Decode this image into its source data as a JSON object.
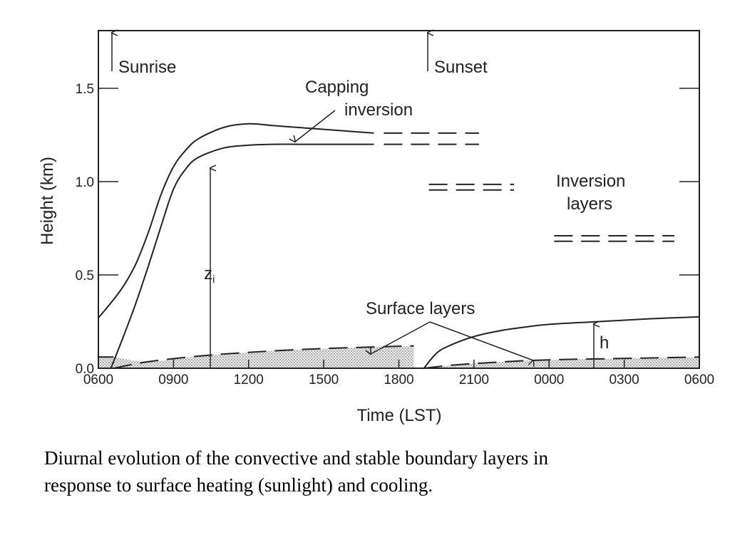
{
  "chart_data": {
    "type": "line",
    "title": "",
    "xlabel": "Time (LST)",
    "ylabel": "Height (km)",
    "x_tick_labels": [
      "0600",
      "0900",
      "1200",
      "1500",
      "1800",
      "2100",
      "0000",
      "0300",
      "0600"
    ],
    "x_tick_hours": [
      0,
      3,
      6,
      9,
      12,
      15,
      18,
      21,
      24
    ],
    "y_ticks": [
      0.0,
      0.5,
      1.0,
      1.5
    ],
    "y_tick_labels": [
      "0.0",
      "0.5",
      "1.0",
      "1.5"
    ],
    "xlim_hours": [
      0,
      24
    ],
    "ylim": [
      0,
      1.8
    ],
    "grid": false,
    "series": [
      {
        "name": "",
        "style": "solid",
        "x_hours": [
          0,
          0.5,
          1,
          1.5,
          2,
          2.5,
          3,
          3.5,
          4,
          5,
          6,
          7,
          8,
          9,
          10,
          11
        ],
        "values": [
          0.27,
          0.35,
          0.44,
          0.56,
          0.73,
          0.93,
          1.08,
          1.17,
          1.23,
          1.29,
          1.31,
          1.3,
          1.29,
          1.28,
          1.27,
          1.26
        ]
      },
      {
        "name": "",
        "style": "solid",
        "x_hours": [
          0.5,
          1,
          1.5,
          2,
          2.5,
          3,
          3.5,
          4,
          5,
          6,
          7,
          8,
          9,
          10,
          11
        ],
        "values": [
          0.0,
          0.17,
          0.35,
          0.55,
          0.76,
          0.96,
          1.07,
          1.13,
          1.18,
          1.195,
          1.2,
          1.2,
          1.2,
          1.2,
          1.2
        ]
      },
      {
        "name": "",
        "style": "dashed",
        "x_hours": [
          11.4,
          15.2
        ],
        "values": [
          1.26,
          1.26
        ]
      },
      {
        "name": "",
        "style": "dashed",
        "x_hours": [
          11.4,
          15.2
        ],
        "values": [
          1.2,
          1.2
        ]
      },
      {
        "name": "",
        "style": "dashed",
        "x_hours": [
          13.2,
          16.6
        ],
        "values": [
          0.985,
          0.985
        ]
      },
      {
        "name": "",
        "style": "dashed",
        "x_hours": [
          13.2,
          16.6
        ],
        "values": [
          0.955,
          0.955
        ]
      },
      {
        "name": "",
        "style": "dashed",
        "x_hours": [
          18.2,
          23.0
        ],
        "values": [
          0.71,
          0.71
        ]
      },
      {
        "name": "",
        "style": "dashed",
        "x_hours": [
          18.2,
          23.0
        ],
        "values": [
          0.68,
          0.68
        ]
      },
      {
        "name": "",
        "style": "dashed",
        "x_hours": [
          0.6,
          2,
          4,
          6,
          8,
          10,
          12.6
        ],
        "values": [
          0.0,
          0.035,
          0.065,
          0.085,
          0.1,
          0.11,
          0.12
        ]
      },
      {
        "name": "",
        "style": "dashed",
        "x_hours": [
          0,
          0.6
        ],
        "values": [
          0.06,
          0.06
        ]
      },
      {
        "name": "",
        "style": "solid",
        "x_hours": [
          13.0,
          13.5,
          14,
          15,
          16,
          17,
          18,
          20,
          22,
          24
        ],
        "values": [
          0.0,
          0.08,
          0.12,
          0.17,
          0.2,
          0.22,
          0.235,
          0.25,
          0.265,
          0.275
        ]
      },
      {
        "name": "",
        "style": "dashed",
        "x_hours": [
          13.0,
          14,
          15,
          16,
          17,
          18,
          19,
          20,
          22,
          24
        ],
        "values": [
          0.0,
          0.015,
          0.025,
          0.033,
          0.04,
          0.045,
          0.048,
          0.05,
          0.055,
          0.06
        ]
      }
    ],
    "shaded_regions": [
      {
        "upper_x_hours": [
          0,
          0.6,
          2,
          4,
          6,
          8,
          10,
          12.6
        ],
        "upper_values": [
          0.06,
          0.06,
          0.035,
          0.065,
          0.085,
          0.1,
          0.11,
          0.12
        ],
        "x_range_hours": [
          0,
          12.6
        ]
      },
      {
        "upper_x_hours": [
          13.0,
          14,
          15,
          16,
          17,
          18,
          19,
          20,
          22,
          24
        ],
        "upper_values": [
          0.0,
          0.015,
          0.025,
          0.033,
          0.04,
          0.045,
          0.048,
          0.05,
          0.055,
          0.06
        ],
        "x_range_hours": [
          13.0,
          24
        ]
      }
    ],
    "annotations": {
      "sunrise": "Sunrise",
      "sunset": "Sunset",
      "capping_line1": "Capping",
      "capping_line2": "inversion",
      "inversion_line1": "Inversion",
      "inversion_line2": "layers",
      "surface": "Surface layers",
      "zi": "z",
      "zi_sub": "i",
      "h": "h"
    }
  },
  "caption": {
    "line1": "Diurnal evolution of the convective and stable boundary layers in",
    "line2": "response to surface heating (sunlight) and cooling."
  }
}
